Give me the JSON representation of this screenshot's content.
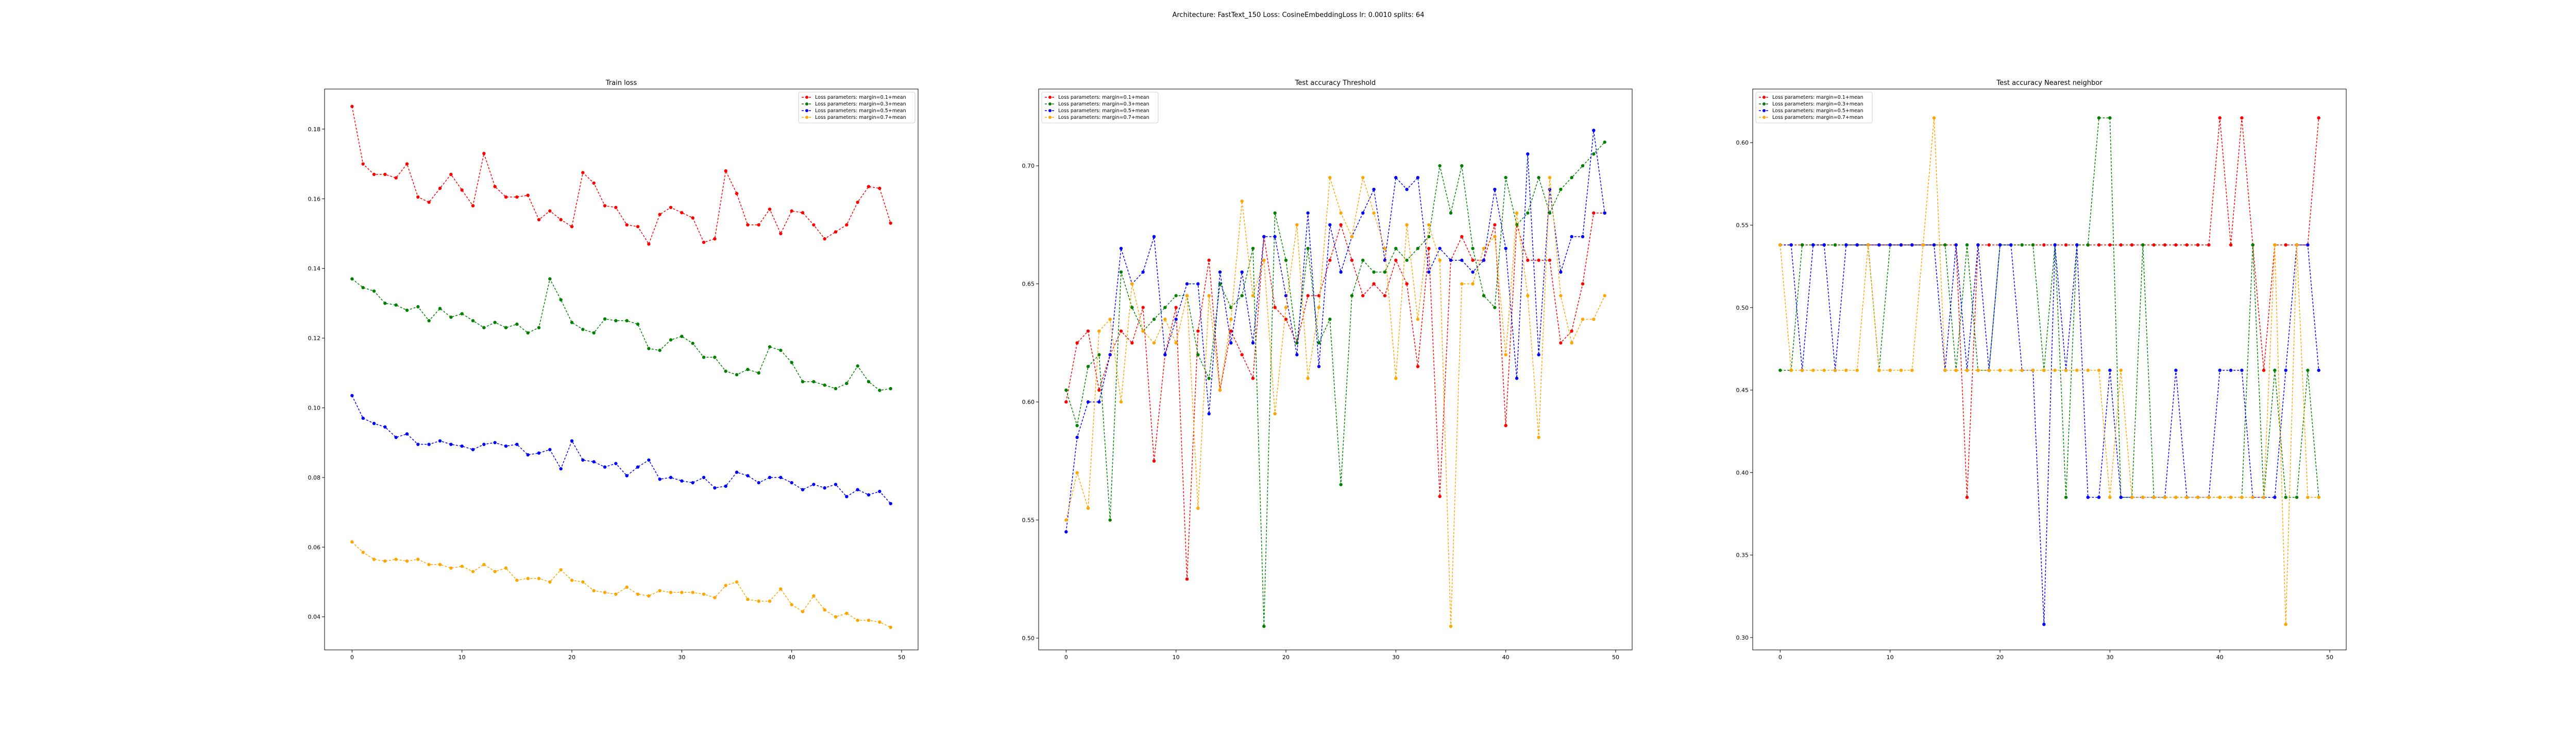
{
  "figure": {
    "suptitle": "Architecture: FastText_150 Loss: CosineEmbeddingLoss lr: 0.0010 splits: 64"
  },
  "chart_data": [
    {
      "type": "line",
      "title": "Train loss",
      "xlabel": "",
      "ylabel": "",
      "xlim": [
        -2.5,
        51.5
      ],
      "ylim": [
        0.0305,
        0.1915
      ],
      "xticks": [
        0,
        10,
        20,
        30,
        40,
        50
      ],
      "yticks": [
        0.04,
        0.06,
        0.08,
        0.1,
        0.12,
        0.14,
        0.16,
        0.18
      ],
      "ytick_labels": [
        "0.04",
        "0.06",
        "0.08",
        "0.10",
        "0.12",
        "0.14",
        "0.16",
        "0.18"
      ],
      "legend_loc": "upper right",
      "grid": false,
      "x": [
        0,
        1,
        2,
        3,
        4,
        5,
        6,
        7,
        8,
        9,
        10,
        11,
        12,
        13,
        14,
        15,
        16,
        17,
        18,
        19,
        20,
        21,
        22,
        23,
        24,
        25,
        26,
        27,
        28,
        29,
        30,
        31,
        32,
        33,
        34,
        35,
        36,
        37,
        38,
        39,
        40,
        41,
        42,
        43,
        44,
        45,
        46,
        47,
        48,
        49
      ],
      "series": [
        {
          "name": "Loss parameters: margin=0.1+mean",
          "color": "#ff0000",
          "marker": "circle",
          "values": [
            0.1865,
            0.17,
            0.167,
            0.167,
            0.166,
            0.17,
            0.1605,
            0.159,
            0.163,
            0.167,
            0.1625,
            0.158,
            0.173,
            0.1635,
            0.1605,
            0.1605,
            0.161,
            0.154,
            0.1565,
            0.154,
            0.152,
            0.1675,
            0.1645,
            0.158,
            0.1575,
            0.1525,
            0.152,
            0.147,
            0.1555,
            0.1575,
            0.156,
            0.1545,
            0.1475,
            0.1485,
            0.168,
            0.1615,
            0.1525,
            0.1525,
            0.157,
            0.15,
            0.1565,
            0.156,
            0.1525,
            0.1485,
            0.1505,
            0.1525,
            0.159,
            0.1635,
            0.163,
            0.153
          ]
        },
        {
          "name": "Loss parameters: margin=0.3+mean",
          "color": "#008000",
          "marker": "circle",
          "values": [
            0.137,
            0.1345,
            0.1335,
            0.13,
            0.1295,
            0.128,
            0.129,
            0.125,
            0.1285,
            0.126,
            0.127,
            0.125,
            0.123,
            0.1245,
            0.123,
            0.124,
            0.1215,
            0.123,
            0.137,
            0.131,
            0.1245,
            0.1225,
            0.1215,
            0.1255,
            0.125,
            0.125,
            0.124,
            0.117,
            0.1165,
            0.1195,
            0.1205,
            0.1185,
            0.1145,
            0.1145,
            0.1105,
            0.1095,
            0.111,
            0.11,
            0.1175,
            0.1165,
            0.113,
            0.1075,
            0.1075,
            0.1065,
            0.1055,
            0.107,
            0.112,
            0.1075,
            0.105,
            0.1055
          ]
        },
        {
          "name": "Loss parameters: margin=0.5+mean",
          "color": "#0000ff",
          "marker": "circle",
          "values": [
            0.1035,
            0.097,
            0.0955,
            0.0945,
            0.0915,
            0.0925,
            0.0895,
            0.0895,
            0.0905,
            0.0895,
            0.089,
            0.088,
            0.0895,
            0.09,
            0.089,
            0.0895,
            0.0865,
            0.087,
            0.088,
            0.0825,
            0.0905,
            0.085,
            0.0845,
            0.083,
            0.084,
            0.0805,
            0.083,
            0.085,
            0.0795,
            0.08,
            0.079,
            0.0785,
            0.08,
            0.077,
            0.0775,
            0.0815,
            0.0805,
            0.0785,
            0.08,
            0.08,
            0.0785,
            0.0765,
            0.078,
            0.077,
            0.078,
            0.0745,
            0.0765,
            0.075,
            0.076,
            0.0725
          ]
        },
        {
          "name": "Loss parameters: margin=0.7+mean",
          "color": "#ffa500",
          "marker": "circle",
          "values": [
            0.0615,
            0.0585,
            0.0565,
            0.056,
            0.0565,
            0.056,
            0.0565,
            0.055,
            0.055,
            0.054,
            0.0545,
            0.053,
            0.055,
            0.053,
            0.054,
            0.0505,
            0.051,
            0.051,
            0.05,
            0.0535,
            0.0505,
            0.05,
            0.0475,
            0.047,
            0.0465,
            0.0485,
            0.0465,
            0.046,
            0.0475,
            0.047,
            0.047,
            0.047,
            0.0465,
            0.0455,
            0.049,
            0.05,
            0.045,
            0.0445,
            0.0445,
            0.048,
            0.0435,
            0.0415,
            0.046,
            0.042,
            0.04,
            0.041,
            0.039,
            0.039,
            0.0385,
            0.037
          ]
        }
      ]
    },
    {
      "type": "line",
      "title": "Test accuracy Threshold",
      "xlabel": "",
      "ylabel": "",
      "xlim": [
        -2.5,
        51.5
      ],
      "ylim": [
        0.495,
        0.7325
      ],
      "xticks": [
        0,
        10,
        20,
        30,
        40,
        50
      ],
      "yticks": [
        0.5,
        0.55,
        0.6,
        0.65,
        0.7
      ],
      "ytick_labels": [
        "0.50",
        "0.55",
        "0.60",
        "0.65",
        "0.70"
      ],
      "legend_loc": "upper left",
      "grid": false,
      "x": [
        0,
        1,
        2,
        3,
        4,
        5,
        6,
        7,
        8,
        9,
        10,
        11,
        12,
        13,
        14,
        15,
        16,
        17,
        18,
        19,
        20,
        21,
        22,
        23,
        24,
        25,
        26,
        27,
        28,
        29,
        30,
        31,
        32,
        33,
        34,
        35,
        36,
        37,
        38,
        39,
        40,
        41,
        42,
        43,
        44,
        45,
        46,
        47,
        48,
        49
      ],
      "series": [
        {
          "name": "Loss parameters: margin=0.1+mean",
          "color": "#ff0000",
          "marker": "circle",
          "values": [
            0.6,
            0.625,
            0.63,
            0.605,
            0.62,
            0.63,
            0.625,
            0.64,
            0.575,
            0.62,
            0.64,
            0.525,
            0.63,
            0.66,
            0.605,
            0.63,
            0.62,
            0.61,
            0.67,
            0.64,
            0.635,
            0.625,
            0.645,
            0.645,
            0.66,
            0.675,
            0.66,
            0.645,
            0.65,
            0.645,
            0.66,
            0.65,
            0.615,
            0.665,
            0.56,
            0.66,
            0.67,
            0.66,
            0.66,
            0.675,
            0.59,
            0.675,
            0.66,
            0.66,
            0.66,
            0.625,
            0.63,
            0.65,
            0.68,
            0.68
          ]
        },
        {
          "name": "Loss parameters: margin=0.3+mean",
          "color": "#008000",
          "marker": "circle",
          "values": [
            0.605,
            0.59,
            0.615,
            0.62,
            0.55,
            0.655,
            0.64,
            0.63,
            0.635,
            0.64,
            0.645,
            0.645,
            0.62,
            0.61,
            0.65,
            0.64,
            0.645,
            0.665,
            0.505,
            0.68,
            0.66,
            0.625,
            0.665,
            0.625,
            0.635,
            0.565,
            0.645,
            0.66,
            0.655,
            0.655,
            0.665,
            0.66,
            0.665,
            0.67,
            0.7,
            0.68,
            0.7,
            0.665,
            0.645,
            0.64,
            0.695,
            0.675,
            0.68,
            0.695,
            0.68,
            0.69,
            0.695,
            0.7,
            0.705,
            0.71
          ]
        },
        {
          "name": "Loss parameters: margin=0.5+mean",
          "color": "#0000ff",
          "marker": "circle",
          "values": [
            0.545,
            0.585,
            0.6,
            0.6,
            0.62,
            0.665,
            0.65,
            0.655,
            0.67,
            0.62,
            0.635,
            0.65,
            0.65,
            0.595,
            0.655,
            0.625,
            0.655,
            0.625,
            0.67,
            0.67,
            0.645,
            0.62,
            0.68,
            0.615,
            0.675,
            0.655,
            0.67,
            0.68,
            0.69,
            0.66,
            0.695,
            0.69,
            0.695,
            0.655,
            0.665,
            0.66,
            0.66,
            0.655,
            0.66,
            0.69,
            0.665,
            0.61,
            0.705,
            0.62,
            0.69,
            0.655,
            0.67,
            0.67,
            0.715,
            0.68
          ]
        },
        {
          "name": "Loss parameters: margin=0.7+mean",
          "color": "#ffa500",
          "marker": "circle",
          "values": [
            0.55,
            0.57,
            0.555,
            0.63,
            0.635,
            0.6,
            0.65,
            0.63,
            0.625,
            0.635,
            0.625,
            0.645,
            0.555,
            0.645,
            0.605,
            0.635,
            0.685,
            0.645,
            0.66,
            0.595,
            0.64,
            0.675,
            0.61,
            0.64,
            0.695,
            0.68,
            0.67,
            0.695,
            0.68,
            0.665,
            0.61,
            0.675,
            0.635,
            0.675,
            0.66,
            0.505,
            0.65,
            0.65,
            0.665,
            0.67,
            0.62,
            0.68,
            0.645,
            0.585,
            0.695,
            0.645,
            0.625,
            0.635,
            0.635,
            0.645
          ]
        }
      ]
    },
    {
      "type": "line",
      "title": "Test accuracy Nearest neighbor",
      "xlabel": "",
      "ylabel": "",
      "xlim": [
        -2.5,
        51.5
      ],
      "ylim": [
        0.2925,
        0.6325
      ],
      "xticks": [
        0,
        10,
        20,
        30,
        40,
        50
      ],
      "yticks": [
        0.3,
        0.35,
        0.4,
        0.45,
        0.5,
        0.55,
        0.6
      ],
      "ytick_labels": [
        "0.30",
        "0.35",
        "0.40",
        "0.45",
        "0.50",
        "0.55",
        "0.60"
      ],
      "legend_loc": "upper left",
      "grid": false,
      "x": [
        0,
        1,
        2,
        3,
        4,
        5,
        6,
        7,
        8,
        9,
        10,
        11,
        12,
        13,
        14,
        15,
        16,
        17,
        18,
        19,
        20,
        21,
        22,
        23,
        24,
        25,
        26,
        27,
        28,
        29,
        30,
        31,
        32,
        33,
        34,
        35,
        36,
        37,
        38,
        39,
        40,
        41,
        42,
        43,
        44,
        45,
        46,
        47,
        48,
        49
      ],
      "series": [
        {
          "name": "Loss parameters: margin=0.1+mean",
          "color": "#ff0000",
          "marker": "circle",
          "values": [
            0.538,
            0.538,
            0.538,
            0.538,
            0.538,
            0.538,
            0.538,
            0.538,
            0.538,
            0.538,
            0.538,
            0.538,
            0.538,
            0.538,
            0.538,
            0.538,
            0.538,
            0.385,
            0.538,
            0.538,
            0.538,
            0.538,
            0.538,
            0.538,
            0.538,
            0.538,
            0.538,
            0.538,
            0.538,
            0.538,
            0.538,
            0.538,
            0.538,
            0.538,
            0.538,
            0.538,
            0.538,
            0.538,
            0.538,
            0.538,
            0.615,
            0.538,
            0.615,
            0.538,
            0.462,
            0.538,
            0.538,
            0.538,
            0.538,
            0.615
          ]
        },
        {
          "name": "Loss parameters: margin=0.3+mean",
          "color": "#008000",
          "marker": "circle",
          "values": [
            0.462,
            0.462,
            0.538,
            0.538,
            0.538,
            0.538,
            0.538,
            0.538,
            0.538,
            0.462,
            0.538,
            0.538,
            0.538,
            0.538,
            0.538,
            0.538,
            0.462,
            0.538,
            0.462,
            0.462,
            0.538,
            0.538,
            0.538,
            0.538,
            0.462,
            0.538,
            0.385,
            0.538,
            0.538,
            0.615,
            0.615,
            0.385,
            0.385,
            0.538,
            0.385,
            0.385,
            0.385,
            0.385,
            0.385,
            0.385,
            0.385,
            0.385,
            0.385,
            0.538,
            0.385,
            0.462,
            0.385,
            0.385,
            0.462,
            0.385
          ]
        },
        {
          "name": "Loss parameters: margin=0.5+mean",
          "color": "#0000ff",
          "marker": "circle",
          "values": [
            0.538,
            0.538,
            0.462,
            0.538,
            0.538,
            0.462,
            0.538,
            0.538,
            0.538,
            0.538,
            0.538,
            0.538,
            0.538,
            0.538,
            0.538,
            0.462,
            0.538,
            0.462,
            0.538,
            0.462,
            0.538,
            0.538,
            0.462,
            0.462,
            0.308,
            0.538,
            0.462,
            0.538,
            0.385,
            0.385,
            0.462,
            0.385,
            0.385,
            0.385,
            0.385,
            0.385,
            0.462,
            0.385,
            0.385,
            0.385,
            0.462,
            0.462,
            0.462,
            0.385,
            0.385,
            0.385,
            0.462,
            0.538,
            0.538,
            0.462
          ]
        },
        {
          "name": "Loss parameters: margin=0.7+mean",
          "color": "#ffa500",
          "marker": "circle",
          "values": [
            0.538,
            0.462,
            0.462,
            0.462,
            0.462,
            0.462,
            0.462,
            0.462,
            0.538,
            0.462,
            0.462,
            0.462,
            0.462,
            0.538,
            0.615,
            0.462,
            0.462,
            0.462,
            0.462,
            0.462,
            0.462,
            0.462,
            0.462,
            0.462,
            0.462,
            0.462,
            0.462,
            0.462,
            0.462,
            0.462,
            0.385,
            0.462,
            0.385,
            0.385,
            0.385,
            0.385,
            0.385,
            0.385,
            0.385,
            0.385,
            0.385,
            0.385,
            0.385,
            0.385,
            0.385,
            0.538,
            0.308,
            0.538,
            0.385,
            0.385
          ]
        }
      ]
    }
  ]
}
